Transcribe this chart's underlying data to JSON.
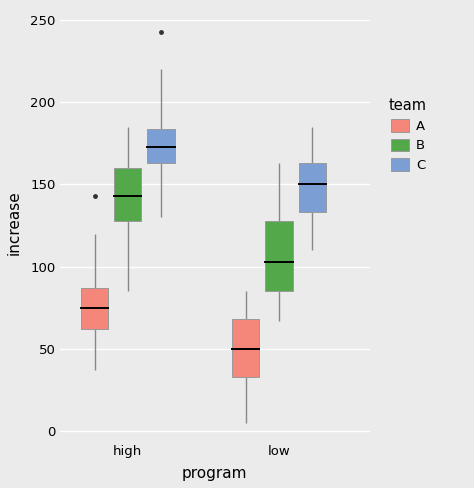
{
  "title": "",
  "xlabel": "program",
  "ylabel": "increase",
  "background_color": "#EBEBEB",
  "grid_color": "#FFFFFF",
  "groups": [
    "high",
    "low"
  ],
  "teams": [
    "A",
    "B",
    "C"
  ],
  "team_colors": {
    "A": "#F4877A",
    "B": "#53A84A",
    "C": "#7B9FD4"
  },
  "boxplot_data": {
    "high": {
      "A": {
        "whislo": 37,
        "q1": 62,
        "med": 75,
        "q3": 87,
        "whishi": 120,
        "fliers": [
          143
        ]
      },
      "B": {
        "whislo": 85,
        "q1": 128,
        "med": 143,
        "q3": 160,
        "whishi": 185,
        "fliers": []
      },
      "C": {
        "whislo": 130,
        "q1": 163,
        "med": 173,
        "q3": 184,
        "whishi": 220,
        "fliers": [
          243
        ]
      }
    },
    "low": {
      "A": {
        "whislo": 5,
        "q1": 33,
        "med": 50,
        "q3": 68,
        "whishi": 85,
        "fliers": []
      },
      "B": {
        "whislo": 67,
        "q1": 85,
        "med": 103,
        "q3": 128,
        "whishi": 163,
        "fliers": []
      },
      "C": {
        "whislo": 110,
        "q1": 133,
        "med": 150,
        "q3": 163,
        "whishi": 185,
        "fliers": []
      }
    }
  },
  "ylim": [
    -5,
    258
  ],
  "yticks": [
    0,
    50,
    100,
    150,
    200,
    250
  ],
  "box_width": 0.18,
  "offsets": [
    -0.22,
    0.0,
    0.22
  ],
  "group_centers": [
    1.0,
    2.0
  ],
  "legend_title": "team",
  "whisker_color": "#888888",
  "median_color": "#000000",
  "flier_color": "#333333",
  "edge_color": "#999999"
}
